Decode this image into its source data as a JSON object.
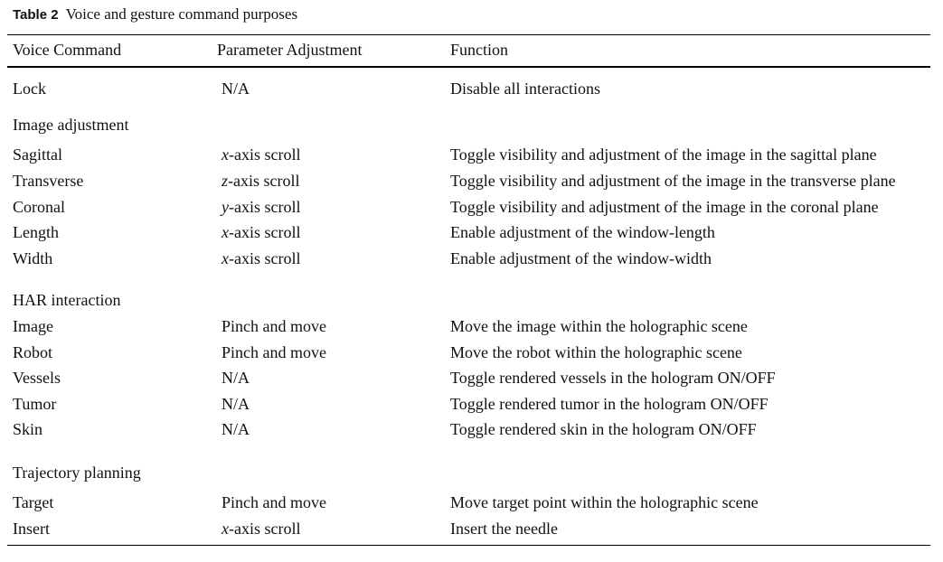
{
  "table": {
    "label": "Table 2",
    "caption": "Voice and gesture command purposes",
    "headers": [
      "Voice Command",
      "Parameter Adjustment",
      "Function"
    ],
    "rows": [
      {
        "command": "Lock",
        "param_var": "",
        "param": "N/A",
        "function": "Disable all interactions"
      },
      {
        "section": "Image adjustment"
      },
      {
        "command": "Sagittal",
        "param_var": "x",
        "param": "-axis scroll",
        "function": "Toggle visibility and adjustment of the image in the sagittal plane"
      },
      {
        "command": "Transverse",
        "param_var": "z",
        "param": "-axis scroll",
        "function": "Toggle visibility and adjustment of the image in the transverse plane"
      },
      {
        "command": "Coronal",
        "param_var": "y",
        "param": "-axis scroll",
        "function": "Toggle visibility and adjustment of the image in the coronal plane"
      },
      {
        "command": "Length",
        "param_var": "x",
        "param": "-axis scroll",
        "function": "Enable adjustment of the window-length"
      },
      {
        "command": "Width",
        "param_var": "x",
        "param": "-axis scroll",
        "function": "Enable adjustment of the window-width"
      },
      {
        "section": "HAR interaction"
      },
      {
        "command": "Image",
        "param_var": "",
        "param": "Pinch and move",
        "function": "Move the image within the holographic scene"
      },
      {
        "command": "Robot",
        "param_var": "",
        "param": "Pinch and move",
        "function": "Move the robot within the holographic scene"
      },
      {
        "command": "Vessels",
        "param_var": "",
        "param": "N/A",
        "function": "Toggle rendered vessels in the hologram ON/OFF"
      },
      {
        "command": "Tumor",
        "param_var": "",
        "param": "N/A",
        "function": "Toggle rendered tumor in the hologram ON/OFF"
      },
      {
        "command": "Skin",
        "param_var": "",
        "param": "N/A",
        "function": "Toggle rendered skin in the hologram ON/OFF"
      },
      {
        "section": "Trajectory planning"
      },
      {
        "command": "Target",
        "param_var": "",
        "param": "Pinch and move",
        "function": "Move target point within the holographic scene"
      },
      {
        "command": "Insert",
        "param_var": "x",
        "param": "-axis scroll",
        "function": "Insert the needle"
      }
    ]
  }
}
